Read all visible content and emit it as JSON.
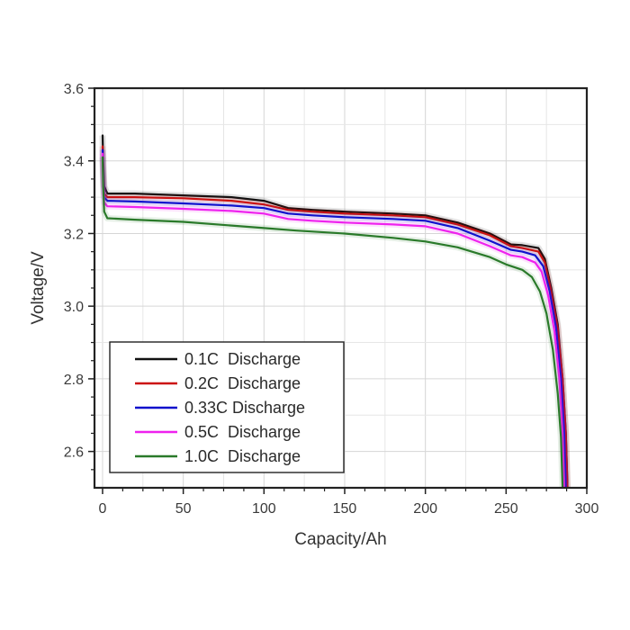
{
  "chart_data": {
    "type": "line",
    "title": "",
    "xlabel": "Capacity/Ah",
    "ylabel": "Voltage/V",
    "xlim": [
      -5,
      300
    ],
    "ylim": [
      2.5,
      3.6
    ],
    "x_ticks": [
      0,
      50,
      100,
      150,
      200,
      250,
      300
    ],
    "y_ticks": [
      2.6,
      2.8,
      3.0,
      3.2,
      3.4,
      3.6
    ],
    "x_tick_labels": [
      "0",
      "50",
      "100",
      "150",
      "200",
      "250",
      "300"
    ],
    "y_tick_labels": [
      "2.6",
      "2.8",
      "3.0",
      "3.2",
      "3.4",
      "3.6"
    ],
    "grid": true,
    "legend_position": "lower-left",
    "series": [
      {
        "name": "0.1C  Discharge",
        "color": "#111111",
        "points": [
          [
            0,
            3.47
          ],
          [
            0.4,
            3.4
          ],
          [
            1,
            3.33
          ],
          [
            3,
            3.31
          ],
          [
            20,
            3.31
          ],
          [
            50,
            3.305
          ],
          [
            80,
            3.3
          ],
          [
            100,
            3.29
          ],
          [
            115,
            3.27
          ],
          [
            130,
            3.265
          ],
          [
            150,
            3.26
          ],
          [
            180,
            3.255
          ],
          [
            200,
            3.25
          ],
          [
            220,
            3.23
          ],
          [
            240,
            3.2
          ],
          [
            253,
            3.17
          ],
          [
            260,
            3.168
          ],
          [
            270,
            3.16
          ],
          [
            274,
            3.13
          ],
          [
            278,
            3.05
          ],
          [
            282,
            2.95
          ],
          [
            285,
            2.8
          ],
          [
            287,
            2.65
          ],
          [
            288,
            2.5
          ]
        ]
      },
      {
        "name": "0.2C  Discharge",
        "color": "#cc1111",
        "points": [
          [
            0,
            3.44
          ],
          [
            0.4,
            3.37
          ],
          [
            1,
            3.31
          ],
          [
            3,
            3.3
          ],
          [
            20,
            3.3
          ],
          [
            50,
            3.297
          ],
          [
            80,
            3.29
          ],
          [
            100,
            3.28
          ],
          [
            115,
            3.265
          ],
          [
            130,
            3.26
          ],
          [
            150,
            3.255
          ],
          [
            180,
            3.25
          ],
          [
            200,
            3.245
          ],
          [
            220,
            3.225
          ],
          [
            240,
            3.195
          ],
          [
            253,
            3.165
          ],
          [
            260,
            3.16
          ],
          [
            270,
            3.15
          ],
          [
            274,
            3.12
          ],
          [
            278,
            3.04
          ],
          [
            282,
            2.94
          ],
          [
            285,
            2.8
          ],
          [
            287,
            2.65
          ],
          [
            288,
            2.5
          ]
        ]
      },
      {
        "name": "0.33C Discharge",
        "color": "#1111cc",
        "points": [
          [
            0,
            3.43
          ],
          [
            0.4,
            3.36
          ],
          [
            1,
            3.3
          ],
          [
            3,
            3.29
          ],
          [
            20,
            3.288
          ],
          [
            50,
            3.283
          ],
          [
            80,
            3.277
          ],
          [
            100,
            3.27
          ],
          [
            115,
            3.255
          ],
          [
            130,
            3.25
          ],
          [
            150,
            3.245
          ],
          [
            180,
            3.24
          ],
          [
            200,
            3.235
          ],
          [
            220,
            3.215
          ],
          [
            240,
            3.18
          ],
          [
            253,
            3.155
          ],
          [
            260,
            3.15
          ],
          [
            268,
            3.14
          ],
          [
            273,
            3.11
          ],
          [
            277,
            3.04
          ],
          [
            281,
            2.94
          ],
          [
            284,
            2.8
          ],
          [
            286,
            2.65
          ],
          [
            287,
            2.5
          ]
        ]
      },
      {
        "name": "0.5C  Discharge",
        "color": "#ee22ee",
        "points": [
          [
            0,
            3.42
          ],
          [
            0.4,
            3.35
          ],
          [
            1,
            3.285
          ],
          [
            3,
            3.275
          ],
          [
            20,
            3.273
          ],
          [
            50,
            3.268
          ],
          [
            80,
            3.262
          ],
          [
            100,
            3.255
          ],
          [
            115,
            3.24
          ],
          [
            130,
            3.235
          ],
          [
            150,
            3.23
          ],
          [
            180,
            3.225
          ],
          [
            200,
            3.22
          ],
          [
            220,
            3.2
          ],
          [
            240,
            3.165
          ],
          [
            253,
            3.14
          ],
          [
            260,
            3.135
          ],
          [
            268,
            3.12
          ],
          [
            272,
            3.095
          ],
          [
            276,
            3.03
          ],
          [
            280,
            2.93
          ],
          [
            283,
            2.8
          ],
          [
            285,
            2.65
          ],
          [
            286,
            2.5
          ]
        ]
      },
      {
        "name": "1.0C  Discharge",
        "color": "#2a7a2a",
        "points": [
          [
            0,
            3.41
          ],
          [
            0.4,
            3.33
          ],
          [
            1,
            3.26
          ],
          [
            3,
            3.242
          ],
          [
            20,
            3.238
          ],
          [
            50,
            3.232
          ],
          [
            80,
            3.222
          ],
          [
            100,
            3.215
          ],
          [
            120,
            3.208
          ],
          [
            150,
            3.2
          ],
          [
            180,
            3.188
          ],
          [
            200,
            3.178
          ],
          [
            220,
            3.162
          ],
          [
            240,
            3.135
          ],
          [
            250,
            3.115
          ],
          [
            260,
            3.1
          ],
          [
            266,
            3.08
          ],
          [
            271,
            3.04
          ],
          [
            275,
            2.98
          ],
          [
            279,
            2.88
          ],
          [
            282,
            2.76
          ],
          [
            284,
            2.64
          ],
          [
            285,
            2.5
          ]
        ]
      }
    ]
  }
}
